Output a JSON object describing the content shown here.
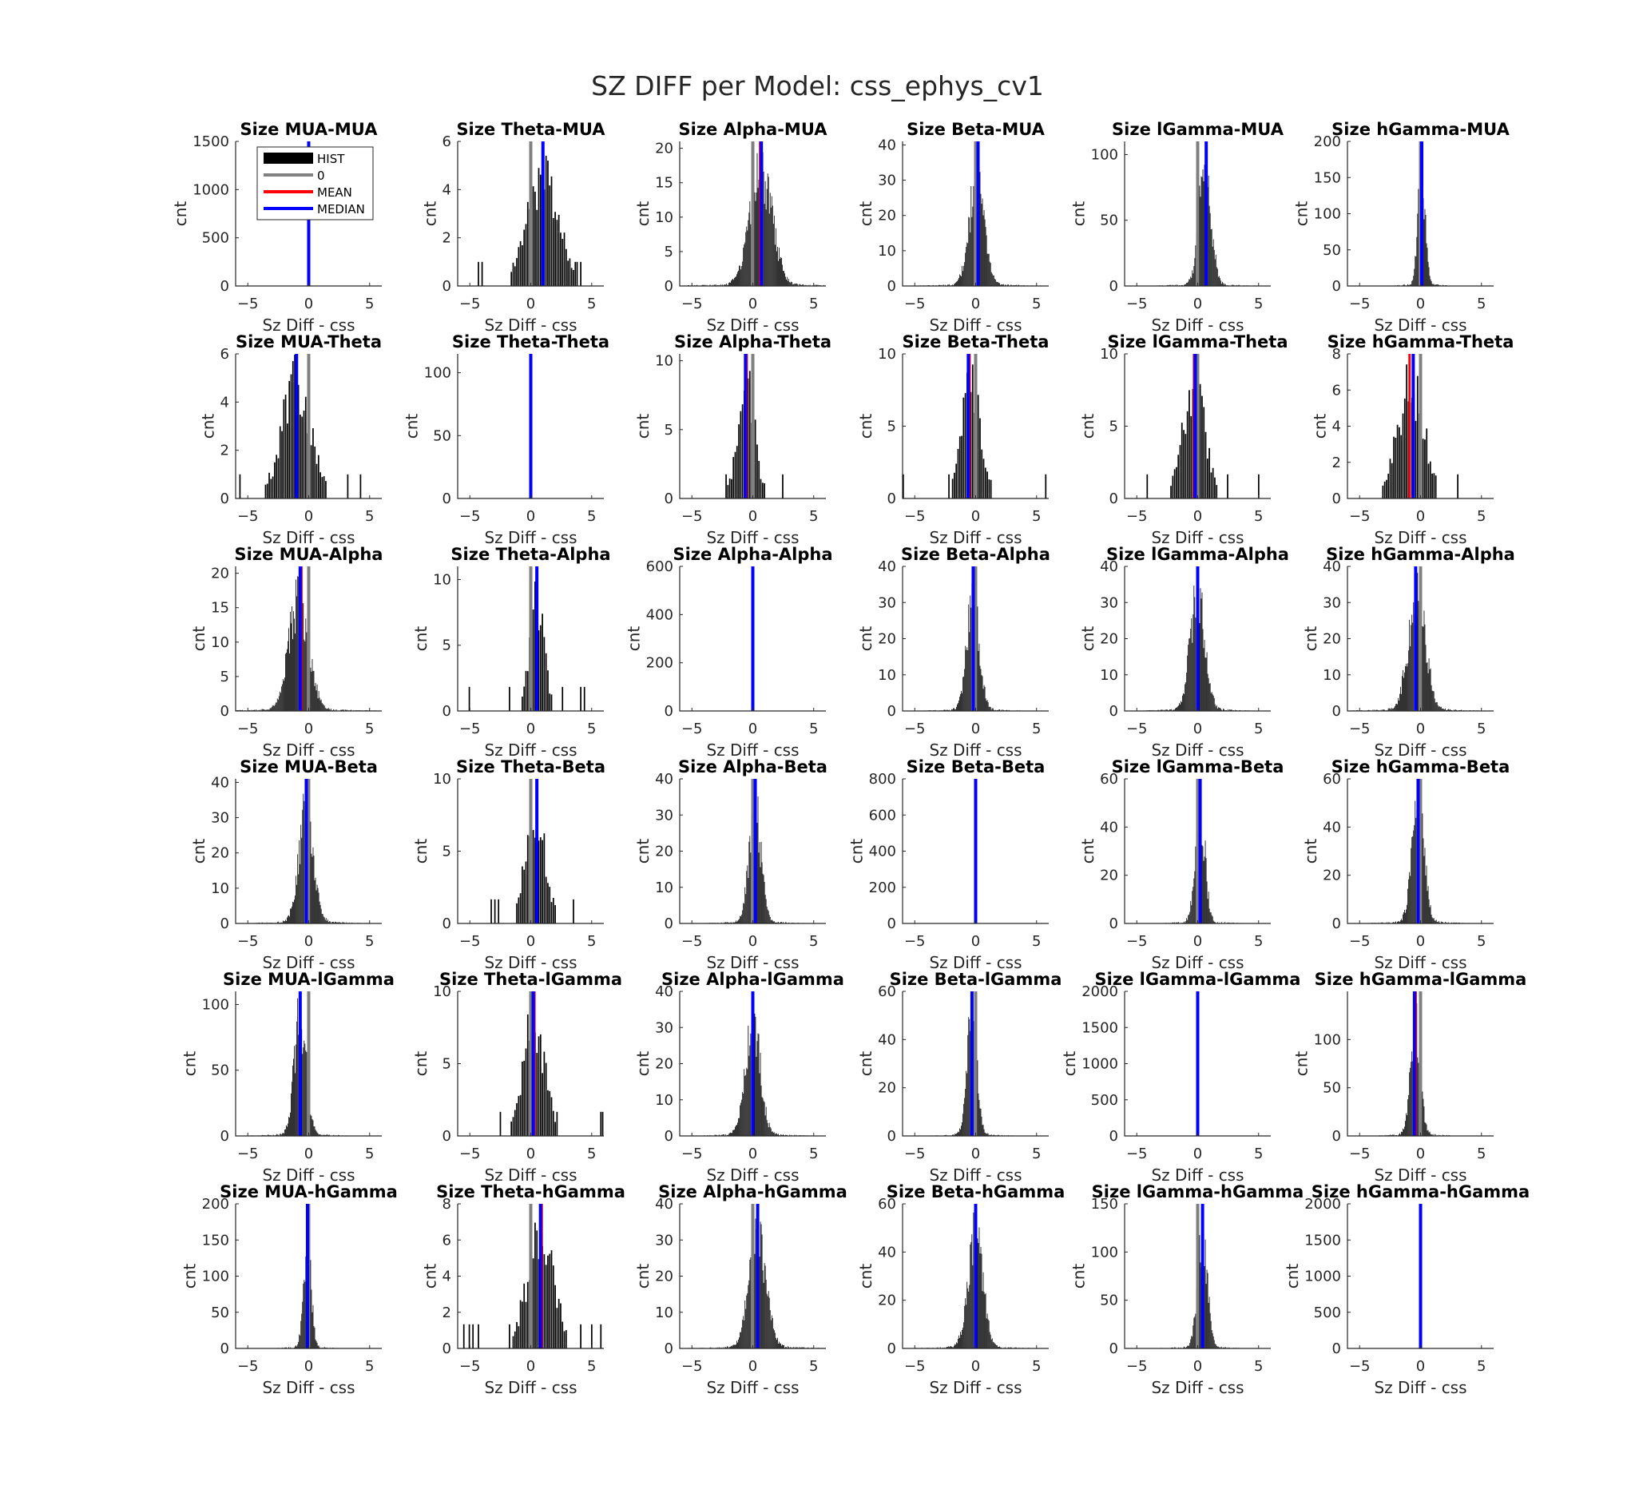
{
  "figure": {
    "title": "SZ DIFF per Model: css_ephys_cv1"
  },
  "legend": {
    "items": [
      {
        "label": "HIST",
        "color": "#000000",
        "kind": "patch"
      },
      {
        "label": "0",
        "color": "#808080",
        "kind": "line"
      },
      {
        "label": "MEAN",
        "color": "#ff0000",
        "kind": "line"
      },
      {
        "label": "MEDIAN",
        "color": "#0000ff",
        "kind": "line"
      }
    ],
    "placement": "top-right of first panel"
  },
  "axes_common": {
    "xlabel": "Sz Diff - css",
    "ylabel": "cnt",
    "xlim": [
      -6,
      6
    ],
    "xticks": [
      -5,
      0,
      5
    ]
  },
  "chart_data": [
    {
      "type": "bar",
      "title": "Size MUA-MUA",
      "ylim": [
        0,
        1500
      ],
      "yticks": [
        0,
        500,
        1000,
        1500
      ],
      "mean": 0,
      "median": 0,
      "spike": 1500,
      "dist": "none"
    },
    {
      "type": "bar",
      "title": "Size Theta-MUA",
      "ylim": [
        0,
        6
      ],
      "yticks": [
        0,
        2,
        4,
        6
      ],
      "mean": 1.0,
      "median": 1.0,
      "dist": "sparse",
      "center": 1.0,
      "spread": 1.3,
      "peak": 6
    },
    {
      "type": "bar",
      "title": "Size Alpha-MUA",
      "ylim": [
        0,
        21
      ],
      "yticks": [
        0,
        5,
        10,
        15,
        20
      ],
      "mean": 0.6,
      "median": 0.7,
      "dist": "normal",
      "center": 0.7,
      "spread": 0.9,
      "peak": 21
    },
    {
      "type": "bar",
      "title": "Size Beta-MUA",
      "ylim": [
        0,
        41
      ],
      "yticks": [
        0,
        10,
        20,
        30,
        40
      ],
      "mean": 0.2,
      "median": 0.2,
      "dist": "normal",
      "center": 0.1,
      "spread": 0.6,
      "peak": 40
    },
    {
      "type": "bar",
      "title": "Size lGamma-MUA",
      "ylim": [
        0,
        110
      ],
      "yticks": [
        0,
        50,
        100
      ],
      "mean": 0.7,
      "median": 0.7,
      "dist": "normal",
      "center": 0.6,
      "spread": 0.5,
      "peak": 110
    },
    {
      "type": "bar",
      "title": "Size hGamma-MUA",
      "ylim": [
        0,
        200
      ],
      "yticks": [
        0,
        50,
        100,
        150,
        200
      ],
      "mean": 0.1,
      "median": 0.1,
      "dist": "normal",
      "center": 0.1,
      "spread": 0.3,
      "peak": 200
    },
    {
      "type": "bar",
      "title": "Size MUA-Theta",
      "ylim": [
        0,
        6
      ],
      "yticks": [
        0,
        2,
        4,
        6
      ],
      "mean": -1.0,
      "median": -1.0,
      "dist": "sparse",
      "center": -1.0,
      "spread": 1.2,
      "peak": 6
    },
    {
      "type": "bar",
      "title": "Size Theta-Theta",
      "ylim": [
        0,
        115
      ],
      "yticks": [
        0,
        50,
        100
      ],
      "mean": 0,
      "median": 0,
      "spike": 115,
      "dist": "none"
    },
    {
      "type": "bar",
      "title": "Size Alpha-Theta",
      "ylim": [
        0,
        10.5
      ],
      "yticks": [
        0,
        5,
        10
      ],
      "mean": -0.5,
      "median": -0.6,
      "dist": "sparse",
      "center": -0.5,
      "spread": 0.7,
      "peak": 10.5
    },
    {
      "type": "bar",
      "title": "Size Beta-Theta",
      "ylim": [
        0,
        10
      ],
      "yticks": [
        0,
        5,
        10
      ],
      "mean": -0.5,
      "median": -0.6,
      "dist": "sparse",
      "center": -0.3,
      "spread": 0.8,
      "peak": 10
    },
    {
      "type": "bar",
      "title": "Size lGamma-Theta",
      "ylim": [
        0,
        10
      ],
      "yticks": [
        0,
        5,
        10
      ],
      "mean": -0.3,
      "median": -0.2,
      "dist": "sparse",
      "center": -0.3,
      "spread": 0.9,
      "peak": 10
    },
    {
      "type": "bar",
      "title": "Size hGamma-Theta",
      "ylim": [
        0,
        8
      ],
      "yticks": [
        0,
        2,
        4,
        6,
        8
      ],
      "mean": -0.9,
      "median": -0.6,
      "dist": "sparse",
      "center": -0.8,
      "spread": 1.1,
      "peak": 8
    },
    {
      "type": "bar",
      "title": "Size MUA-Alpha",
      "ylim": [
        0,
        21
      ],
      "yticks": [
        0,
        5,
        10,
        15,
        20
      ],
      "mean": -0.6,
      "median": -0.7,
      "dist": "normal",
      "center": -0.8,
      "spread": 0.8,
      "peak": 21
    },
    {
      "type": "bar",
      "title": "Size Theta-Alpha",
      "ylim": [
        0,
        11
      ],
      "yticks": [
        0,
        5,
        10
      ],
      "mean": 0.5,
      "median": 0.5,
      "dist": "sparse",
      "center": 0.5,
      "spread": 0.6,
      "peak": 11
    },
    {
      "type": "bar",
      "title": "Size Alpha-Alpha",
      "ylim": [
        0,
        600
      ],
      "yticks": [
        0,
        200,
        400,
        600
      ],
      "mean": 0,
      "median": 0,
      "spike": 600,
      "dist": "none"
    },
    {
      "type": "bar",
      "title": "Size Beta-Alpha",
      "ylim": [
        0,
        40
      ],
      "yticks": [
        0,
        10,
        20,
        30,
        40
      ],
      "mean": -0.2,
      "median": -0.2,
      "dist": "normal",
      "center": -0.2,
      "spread": 0.5,
      "peak": 40
    },
    {
      "type": "bar",
      "title": "Size lGamma-Alpha",
      "ylim": [
        0,
        40
      ],
      "yticks": [
        0,
        10,
        20,
        30,
        40
      ],
      "mean": 0.0,
      "median": 0.0,
      "dist": "normal",
      "center": 0.0,
      "spread": 0.6,
      "peak": 40
    },
    {
      "type": "bar",
      "title": "Size hGamma-Alpha",
      "ylim": [
        0,
        40
      ],
      "yticks": [
        0,
        10,
        20,
        30,
        40
      ],
      "mean": -0.4,
      "median": -0.4,
      "dist": "normal",
      "center": -0.3,
      "spread": 0.7,
      "peak": 40
    },
    {
      "type": "bar",
      "title": "Size MUA-Beta",
      "ylim": [
        0,
        41
      ],
      "yticks": [
        0,
        10,
        20,
        30,
        40
      ],
      "mean": -0.2,
      "median": -0.2,
      "dist": "normal",
      "center": -0.2,
      "spread": 0.6,
      "peak": 40
    },
    {
      "type": "bar",
      "title": "Size Theta-Beta",
      "ylim": [
        0,
        10
      ],
      "yticks": [
        0,
        5,
        10
      ],
      "mean": 0.5,
      "median": 0.5,
      "dist": "sparse",
      "center": 0.4,
      "spread": 0.8,
      "peak": 10
    },
    {
      "type": "bar",
      "title": "Size Alpha-Beta",
      "ylim": [
        0,
        40
      ],
      "yticks": [
        0,
        10,
        20,
        30,
        40
      ],
      "mean": 0.2,
      "median": 0.2,
      "dist": "normal",
      "center": 0.2,
      "spread": 0.5,
      "peak": 40
    },
    {
      "type": "bar",
      "title": "Size Beta-Beta",
      "ylim": [
        0,
        800
      ],
      "yticks": [
        0,
        200,
        400,
        600,
        800
      ],
      "mean": 0,
      "median": 0,
      "spike": 800,
      "dist": "none"
    },
    {
      "type": "bar",
      "title": "Size lGamma-Beta",
      "ylim": [
        0,
        60
      ],
      "yticks": [
        0,
        20,
        40,
        60
      ],
      "mean": 0.2,
      "median": 0.2,
      "dist": "normal",
      "center": 0.2,
      "spread": 0.4,
      "peak": 60
    },
    {
      "type": "bar",
      "title": "Size hGamma-Beta",
      "ylim": [
        0,
        60
      ],
      "yticks": [
        0,
        20,
        40,
        60
      ],
      "mean": -0.2,
      "median": -0.2,
      "dist": "normal",
      "center": -0.2,
      "spread": 0.5,
      "peak": 60
    },
    {
      "type": "bar",
      "title": "Size MUA-lGamma",
      "ylim": [
        0,
        110
      ],
      "yticks": [
        0,
        50,
        100
      ],
      "mean": -0.7,
      "median": -0.7,
      "dist": "normal",
      "center": -0.7,
      "spread": 0.5,
      "peak": 110
    },
    {
      "type": "bar",
      "title": "Size Theta-lGamma",
      "ylim": [
        0,
        10
      ],
      "yticks": [
        0,
        5,
        10
      ],
      "mean": 0.3,
      "median": 0.2,
      "dist": "sparse",
      "center": 0.3,
      "spread": 0.9,
      "peak": 10
    },
    {
      "type": "bar",
      "title": "Size Alpha-lGamma",
      "ylim": [
        0,
        40
      ],
      "yticks": [
        0,
        10,
        20,
        30,
        40
      ],
      "mean": 0.0,
      "median": 0.0,
      "dist": "normal",
      "center": 0.0,
      "spread": 0.6,
      "peak": 40
    },
    {
      "type": "bar",
      "title": "Size Beta-lGamma",
      "ylim": [
        0,
        60
      ],
      "yticks": [
        0,
        20,
        40,
        60
      ],
      "mean": -0.3,
      "median": -0.3,
      "dist": "normal",
      "center": -0.3,
      "spread": 0.4,
      "peak": 60
    },
    {
      "type": "bar",
      "title": "Size lGamma-lGamma",
      "ylim": [
        0,
        2000
      ],
      "yticks": [
        0,
        500,
        1000,
        1500,
        2000
      ],
      "mean": 0,
      "median": 0,
      "spike": 2000,
      "dist": "none"
    },
    {
      "type": "bar",
      "title": "Size hGamma-lGamma",
      "ylim": [
        0,
        150
      ],
      "yticks": [
        0,
        50,
        100
      ],
      "mean": -0.4,
      "median": -0.5,
      "dist": "normal",
      "center": -0.4,
      "spread": 0.4,
      "peak": 150
    },
    {
      "type": "bar",
      "title": "Size MUA-hGamma",
      "ylim": [
        0,
        200
      ],
      "yticks": [
        0,
        50,
        100,
        150,
        200
      ],
      "mean": -0.1,
      "median": -0.1,
      "dist": "normal",
      "center": -0.1,
      "spread": 0.3,
      "peak": 200
    },
    {
      "type": "bar",
      "title": "Size Theta-hGamma",
      "ylim": [
        0,
        8
      ],
      "yticks": [
        0,
        2,
        4,
        6,
        8
      ],
      "mean": 0.9,
      "median": 0.8,
      "dist": "sparse",
      "center": 0.8,
      "spread": 1.1,
      "peak": 8
    },
    {
      "type": "bar",
      "title": "Size Alpha-hGamma",
      "ylim": [
        0,
        40
      ],
      "yticks": [
        0,
        10,
        20,
        30,
        40
      ],
      "mean": 0.4,
      "median": 0.4,
      "dist": "normal",
      "center": 0.4,
      "spread": 0.7,
      "peak": 40
    },
    {
      "type": "bar",
      "title": "Size Beta-hGamma",
      "ylim": [
        0,
        60
      ],
      "yticks": [
        0,
        20,
        40,
        60
      ],
      "mean": 0.0,
      "median": 0.0,
      "dist": "normal",
      "center": 0.0,
      "spread": 0.6,
      "peak": 60
    },
    {
      "type": "bar",
      "title": "Size lGamma-hGamma",
      "ylim": [
        0,
        150
      ],
      "yticks": [
        0,
        50,
        100,
        150
      ],
      "mean": 0.4,
      "median": 0.4,
      "dist": "normal",
      "center": 0.4,
      "spread": 0.4,
      "peak": 150
    },
    {
      "type": "bar",
      "title": "Size hGamma-hGamma",
      "ylim": [
        0,
        2000
      ],
      "yticks": [
        0,
        500,
        1000,
        1500,
        2000
      ],
      "mean": 0,
      "median": 0,
      "spike": 2000,
      "dist": "none"
    }
  ]
}
